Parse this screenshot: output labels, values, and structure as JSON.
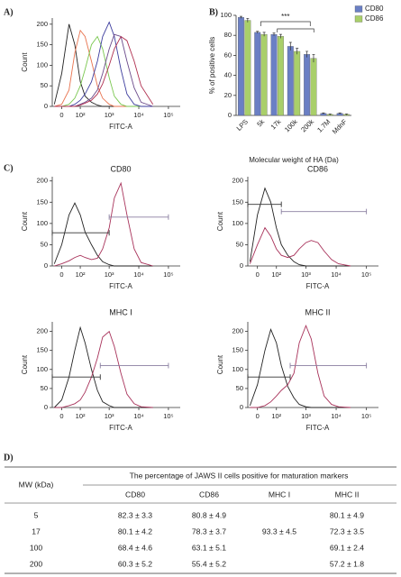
{
  "chart_data": [
    {
      "type": "line",
      "panel_label": "A)",
      "xlabel": "FITC-A",
      "ylabel": "Count",
      "xscale": "biexponential",
      "x": [
        -30,
        0,
        30,
        60,
        100,
        150,
        250,
        400,
        600,
        1000,
        1500,
        2500,
        4000,
        7000,
        12000,
        30000
      ],
      "xlim": [
        -40,
        250000
      ],
      "xticks": [
        0,
        {
          "value": 100,
          "label": "10²"
        },
        {
          "value": 1000,
          "label": "10³"
        },
        {
          "value": 10000,
          "label": "10⁴"
        },
        {
          "value": 100000,
          "label": "10⁵"
        }
      ],
      "ylim": [
        0,
        215
      ],
      "yticks": [
        0,
        50,
        100,
        150,
        200
      ],
      "series": [
        {
          "color": "#222222",
          "values": [
            5,
            80,
            200,
            150,
            60,
            25,
            10,
            3,
            0,
            0,
            0,
            0,
            0,
            0,
            0,
            0
          ]
        },
        {
          "color": "#e8734f",
          "values": [
            0,
            5,
            40,
            130,
            185,
            170,
            110,
            50,
            20,
            5,
            0,
            0,
            0,
            0,
            0,
            0
          ]
        },
        {
          "color": "#7ac74f",
          "values": [
            0,
            0,
            5,
            20,
            50,
            90,
            150,
            170,
            140,
            70,
            25,
            5,
            0,
            0,
            0,
            0
          ]
        },
        {
          "color": "#3d3d9e",
          "values": [
            0,
            0,
            0,
            5,
            15,
            30,
            60,
            110,
            170,
            205,
            170,
            90,
            30,
            5,
            0,
            0
          ]
        },
        {
          "color": "#6b4a8a",
          "values": [
            0,
            0,
            0,
            0,
            5,
            10,
            20,
            40,
            80,
            140,
            175,
            170,
            110,
            45,
            10,
            0
          ]
        },
        {
          "color": "#b03050",
          "values": [
            0,
            0,
            0,
            0,
            3,
            8,
            15,
            30,
            55,
            100,
            140,
            170,
            160,
            110,
            50,
            5
          ]
        }
      ]
    },
    {
      "type": "bar",
      "panel_label": "B)",
      "xlabel": "Molecular weight of HA (Da)",
      "ylabel": "% of positive cells",
      "annotation": "***",
      "categories": [
        "LPS",
        "5k",
        "17k",
        "100k",
        "200k",
        "1.7M",
        "MdnF"
      ],
      "ylim": [
        0,
        100
      ],
      "yticks": [
        0,
        20,
        40,
        60,
        80,
        100
      ],
      "legend": "top-right",
      "series": [
        {
          "name": "CD80",
          "color": "#6a7fc4",
          "values": [
            98,
            83,
            81,
            69,
            61,
            2,
            2
          ],
          "errors": [
            1,
            1,
            1.5,
            4,
            3,
            0.5,
            0.5
          ]
        },
        {
          "name": "CD86",
          "color": "#a9cf6a",
          "values": [
            95,
            81,
            79,
            64,
            57,
            1,
            1
          ],
          "errors": [
            2,
            2,
            2,
            3,
            4,
            0.5,
            0.5
          ]
        }
      ]
    },
    {
      "type": "line",
      "panel_label": "C)",
      "title": "CD80",
      "xlabel": "FITC-A",
      "ylabel": "Count",
      "xscale": "biexponential",
      "x": [
        -30,
        0,
        30,
        60,
        100,
        150,
        250,
        400,
        600,
        1000,
        1500,
        2500,
        4000,
        7000,
        12000,
        30000
      ],
      "xlim": [
        -40,
        250000
      ],
      "xticks": [
        0,
        {
          "value": 100,
          "label": "10²"
        },
        {
          "value": 1000,
          "label": "10³"
        },
        {
          "value": 10000,
          "label": "10⁴"
        },
        {
          "value": 100000,
          "label": "10⁵"
        }
      ],
      "ylim": [
        0,
        210
      ],
      "yticks": [
        0,
        50,
        100,
        150,
        200
      ],
      "series": [
        {
          "color": "#222222",
          "values": [
            5,
            50,
            120,
            148,
            120,
            80,
            50,
            25,
            10,
            3,
            0,
            0,
            0,
            0,
            0,
            0
          ]
        },
        {
          "color": "#a8325a",
          "values": [
            0,
            5,
            12,
            20,
            25,
            20,
            15,
            18,
            40,
            90,
            160,
            195,
            120,
            40,
            8,
            0
          ]
        }
      ],
      "gates": [
        {
          "color": "#333333",
          "x": [
            -40,
            1000
          ],
          "y": 78
        },
        {
          "color": "#8a7fa0",
          "x": [
            1000,
            100000
          ],
          "y": 115
        }
      ]
    },
    {
      "type": "line",
      "title": "CD86",
      "xlabel": "FITC-A",
      "ylabel": "Count",
      "xscale": "biexponential",
      "x": [
        -30,
        0,
        30,
        60,
        100,
        150,
        250,
        400,
        600,
        1000,
        1500,
        2500,
        4000,
        7000,
        12000,
        30000
      ],
      "xlim": [
        -40,
        250000
      ],
      "xticks": [
        0,
        {
          "value": 100,
          "label": "10²"
        },
        {
          "value": 1000,
          "label": "10³"
        },
        {
          "value": 10000,
          "label": "10⁴"
        },
        {
          "value": 100000,
          "label": "10⁵"
        }
      ],
      "ylim": [
        0,
        210
      ],
      "yticks": [
        0,
        50,
        100,
        150,
        200
      ],
      "series": [
        {
          "color": "#222222",
          "values": [
            10,
            120,
            183,
            150,
            90,
            50,
            25,
            10,
            3,
            0,
            0,
            0,
            0,
            0,
            0,
            0
          ]
        },
        {
          "color": "#a8325a",
          "values": [
            5,
            50,
            90,
            70,
            40,
            25,
            20,
            25,
            40,
            55,
            60,
            55,
            35,
            15,
            5,
            0
          ]
        }
      ],
      "gates": [
        {
          "color": "#333333",
          "x": [
            -40,
            150
          ],
          "y": 145
        },
        {
          "color": "#8a7fa0",
          "x": [
            150,
            100000
          ],
          "y": 128
        }
      ]
    },
    {
      "type": "line",
      "title": "MHC I",
      "xlabel": "FITC-A",
      "ylabel": "Count",
      "xscale": "biexponential",
      "x": [
        -30,
        0,
        30,
        60,
        100,
        150,
        250,
        400,
        600,
        1000,
        1500,
        2500,
        4000,
        7000,
        12000,
        30000
      ],
      "xlim": [
        -40,
        250000
      ],
      "xticks": [
        0,
        {
          "value": 100,
          "label": "10²"
        },
        {
          "value": 1000,
          "label": "10³"
        },
        {
          "value": 10000,
          "label": "10⁴"
        },
        {
          "value": 100000,
          "label": "10⁵"
        }
      ],
      "ylim": [
        0,
        225
      ],
      "yticks": [
        0,
        50,
        100,
        150,
        200
      ],
      "series": [
        {
          "color": "#222222",
          "values": [
            0,
            20,
            80,
            150,
            210,
            170,
            100,
            45,
            15,
            5,
            0,
            0,
            0,
            0,
            0,
            0
          ]
        },
        {
          "color": "#a8325a",
          "values": [
            0,
            0,
            5,
            10,
            20,
            40,
            80,
            130,
            185,
            200,
            160,
            90,
            35,
            10,
            2,
            0
          ]
        }
      ],
      "gates": [
        {
          "color": "#333333",
          "x": [
            -40,
            500
          ],
          "y": 80
        },
        {
          "color": "#8a7fa0",
          "x": [
            500,
            100000
          ],
          "y": 110
        }
      ]
    },
    {
      "type": "line",
      "title": "MHC II",
      "xlabel": "FITC-A",
      "ylabel": "Count",
      "xscale": "biexponential",
      "x": [
        -30,
        0,
        30,
        60,
        100,
        150,
        250,
        400,
        600,
        1000,
        1500,
        2500,
        4000,
        7000,
        12000,
        30000
      ],
      "xlim": [
        -40,
        250000
      ],
      "xticks": [
        0,
        {
          "value": 100,
          "label": "10²"
        },
        {
          "value": 1000,
          "label": "10³"
        },
        {
          "value": 10000,
          "label": "10⁴"
        },
        {
          "value": 100000,
          "label": "10⁵"
        }
      ],
      "ylim": [
        0,
        225
      ],
      "yticks": [
        0,
        50,
        100,
        150,
        200
      ],
      "series": [
        {
          "color": "#222222",
          "values": [
            5,
            60,
            150,
            205,
            170,
            110,
            55,
            25,
            8,
            2,
            0,
            0,
            0,
            0,
            0,
            0
          ]
        },
        {
          "color": "#a8325a",
          "values": [
            0,
            0,
            5,
            15,
            30,
            45,
            60,
            90,
            170,
            215,
            180,
            90,
            30,
            8,
            2,
            0
          ]
        }
      ],
      "gates": [
        {
          "color": "#333333",
          "x": [
            -40,
            300
          ],
          "y": 80
        },
        {
          "color": "#8a7fa0",
          "x": [
            300,
            100000
          ],
          "y": 110
        }
      ]
    }
  ],
  "table": {
    "panel_label": "D)",
    "caption": "The percentage of JAWS II cells positive for maturation markers",
    "columns": [
      "MW (kDa)",
      "CD80",
      "CD86",
      "MHC I",
      "MHC II"
    ],
    "rows": [
      [
        5,
        "82.3 ± 3.3",
        "80.8 ± 4.9",
        null,
        "80.1 ± 4.9"
      ],
      [
        17,
        "80.1 ± 4.2",
        "78.3 ± 3.7",
        "93.3 ± 4.5",
        "72.3 ± 3.5"
      ],
      [
        100,
        "68.4 ± 4.6",
        "63.1 ± 5.1",
        null,
        "69.1 ± 2.4"
      ],
      [
        200,
        "60.3 ± 5.2",
        "55.4 ± 5.2",
        null,
        "57.2 ± 1.8"
      ]
    ]
  }
}
